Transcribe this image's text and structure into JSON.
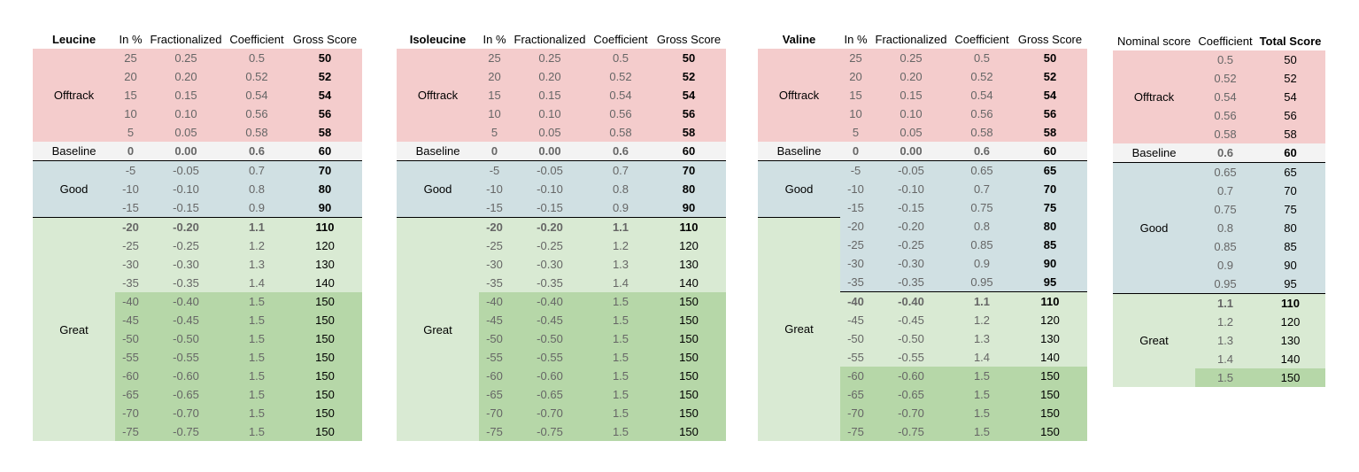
{
  "colors": {
    "offtrack": "#f4cccc",
    "baseline": "#f3f3f3",
    "good": "#d0e0e3",
    "great": "#d9ead3",
    "great_dark": "#b6d7a8",
    "value_text": "#666666"
  },
  "tables": [
    {
      "headers": [
        "Leucine",
        "In %",
        "Fractionalized",
        "Coefficient",
        "Gross Score"
      ],
      "bold_headers": [
        0
      ],
      "groups": [
        {
          "label": "Offtrack",
          "fill": "offtrack",
          "rows": [
            {
              "c": [
                "25",
                "0.25",
                "0.5",
                "50"
              ],
              "fill": "offtrack"
            },
            {
              "c": [
                "20",
                "0.20",
                "0.52",
                "52"
              ],
              "fill": "offtrack"
            },
            {
              "c": [
                "15",
                "0.15",
                "0.54",
                "54"
              ],
              "fill": "offtrack"
            },
            {
              "c": [
                "10",
                "0.10",
                "0.56",
                "56"
              ],
              "fill": "offtrack"
            },
            {
              "c": [
                "5",
                "0.05",
                "0.58",
                "58"
              ],
              "fill": "offtrack"
            }
          ]
        },
        {
          "label": "Baseline",
          "fill": "baseline",
          "rows": [
            {
              "c": [
                "0",
                "0.00",
                "0.6",
                "60"
              ],
              "fill": "baseline",
              "bold": true
            }
          ]
        },
        {
          "label": "Good",
          "fill": "good",
          "line": true,
          "rows": [
            {
              "c": [
                "-5",
                "-0.05",
                "0.7",
                "70"
              ],
              "fill": "good",
              "line": true
            },
            {
              "c": [
                "-10",
                "-0.10",
                "0.8",
                "80"
              ],
              "fill": "good"
            },
            {
              "c": [
                "-15",
                "-0.15",
                "0.9",
                "90"
              ],
              "fill": "good"
            }
          ]
        },
        {
          "label": "Great",
          "fill": "great",
          "line": true,
          "rows": [
            {
              "c": [
                "-20",
                "-0.20",
                "1.1",
                "110"
              ],
              "fill": "great",
              "bold": true,
              "line": true
            },
            {
              "c": [
                "-25",
                "-0.25",
                "1.2",
                "120"
              ],
              "fill": "great"
            },
            {
              "c": [
                "-30",
                "-0.30",
                "1.3",
                "130"
              ],
              "fill": "great"
            },
            {
              "c": [
                "-35",
                "-0.35",
                "1.4",
                "140"
              ],
              "fill": "great"
            },
            {
              "c": [
                "-40",
                "-0.40",
                "1.5",
                "150"
              ],
              "fill": "great_dark"
            },
            {
              "c": [
                "-45",
                "-0.45",
                "1.5",
                "150"
              ],
              "fill": "great_dark"
            },
            {
              "c": [
                "-50",
                "-0.50",
                "1.5",
                "150"
              ],
              "fill": "great_dark"
            },
            {
              "c": [
                "-55",
                "-0.55",
                "1.5",
                "150"
              ],
              "fill": "great_dark"
            },
            {
              "c": [
                "-60",
                "-0.60",
                "1.5",
                "150"
              ],
              "fill": "great_dark"
            },
            {
              "c": [
                "-65",
                "-0.65",
                "1.5",
                "150"
              ],
              "fill": "great_dark"
            },
            {
              "c": [
                "-70",
                "-0.70",
                "1.5",
                "150"
              ],
              "fill": "great_dark"
            },
            {
              "c": [
                "-75",
                "-0.75",
                "1.5",
                "150"
              ],
              "fill": "great_dark"
            }
          ]
        }
      ]
    },
    {
      "headers": [
        "Isoleucine",
        "In %",
        "Fractionalized",
        "Coefficient",
        "Gross Score"
      ],
      "bold_headers": [
        0
      ],
      "groups": [
        {
          "label": "Offtrack",
          "fill": "offtrack",
          "rows": [
            {
              "c": [
                "25",
                "0.25",
                "0.5",
                "50"
              ],
              "fill": "offtrack"
            },
            {
              "c": [
                "20",
                "0.20",
                "0.52",
                "52"
              ],
              "fill": "offtrack"
            },
            {
              "c": [
                "15",
                "0.15",
                "0.54",
                "54"
              ],
              "fill": "offtrack"
            },
            {
              "c": [
                "10",
                "0.10",
                "0.56",
                "56"
              ],
              "fill": "offtrack"
            },
            {
              "c": [
                "5",
                "0.05",
                "0.58",
                "58"
              ],
              "fill": "offtrack"
            }
          ]
        },
        {
          "label": "Baseline",
          "fill": "baseline",
          "rows": [
            {
              "c": [
                "0",
                "0.00",
                "0.6",
                "60"
              ],
              "fill": "baseline",
              "bold": true
            }
          ]
        },
        {
          "label": "Good",
          "fill": "good",
          "line": true,
          "rows": [
            {
              "c": [
                "-5",
                "-0.05",
                "0.7",
                "70"
              ],
              "fill": "good",
              "line": true
            },
            {
              "c": [
                "-10",
                "-0.10",
                "0.8",
                "80"
              ],
              "fill": "good"
            },
            {
              "c": [
                "-15",
                "-0.15",
                "0.9",
                "90"
              ],
              "fill": "good"
            }
          ]
        },
        {
          "label": "Great",
          "fill": "great",
          "line": true,
          "rows": [
            {
              "c": [
                "-20",
                "-0.20",
                "1.1",
                "110"
              ],
              "fill": "great",
              "bold": true,
              "line": true
            },
            {
              "c": [
                "-25",
                "-0.25",
                "1.2",
                "120"
              ],
              "fill": "great"
            },
            {
              "c": [
                "-30",
                "-0.30",
                "1.3",
                "130"
              ],
              "fill": "great"
            },
            {
              "c": [
                "-35",
                "-0.35",
                "1.4",
                "140"
              ],
              "fill": "great"
            },
            {
              "c": [
                "-40",
                "-0.40",
                "1.5",
                "150"
              ],
              "fill": "great_dark"
            },
            {
              "c": [
                "-45",
                "-0.45",
                "1.5",
                "150"
              ],
              "fill": "great_dark"
            },
            {
              "c": [
                "-50",
                "-0.50",
                "1.5",
                "150"
              ],
              "fill": "great_dark"
            },
            {
              "c": [
                "-55",
                "-0.55",
                "1.5",
                "150"
              ],
              "fill": "great_dark"
            },
            {
              "c": [
                "-60",
                "-0.60",
                "1.5",
                "150"
              ],
              "fill": "great_dark"
            },
            {
              "c": [
                "-65",
                "-0.65",
                "1.5",
                "150"
              ],
              "fill": "great_dark"
            },
            {
              "c": [
                "-70",
                "-0.70",
                "1.5",
                "150"
              ],
              "fill": "great_dark"
            },
            {
              "c": [
                "-75",
                "-0.75",
                "1.5",
                "150"
              ],
              "fill": "great_dark"
            }
          ]
        }
      ]
    },
    {
      "headers": [
        "Valine",
        "In %",
        "Fractionalized",
        "Coefficient",
        "Gross Score"
      ],
      "bold_headers": [
        0
      ],
      "groups": [
        {
          "label": "Offtrack",
          "fill": "offtrack",
          "rows": [
            {
              "c": [
                "25",
                "0.25",
                "0.5",
                "50"
              ],
              "fill": "offtrack"
            },
            {
              "c": [
                "20",
                "0.20",
                "0.52",
                "52"
              ],
              "fill": "offtrack"
            },
            {
              "c": [
                "15",
                "0.15",
                "0.54",
                "54"
              ],
              "fill": "offtrack"
            },
            {
              "c": [
                "10",
                "0.10",
                "0.56",
                "56"
              ],
              "fill": "offtrack"
            },
            {
              "c": [
                "5",
                "0.05",
                "0.58",
                "58"
              ],
              "fill": "offtrack"
            }
          ]
        },
        {
          "label": "Baseline",
          "fill": "baseline",
          "rows": [
            {
              "c": [
                "0",
                "0.00",
                "0.6",
                "60"
              ],
              "fill": "baseline",
              "bold": true
            }
          ]
        },
        {
          "label": "Good",
          "fill": "good",
          "line": true,
          "rows": [
            {
              "c": [
                "-5",
                "-0.05",
                "0.65",
                "65"
              ],
              "fill": "good",
              "line": true
            },
            {
              "c": [
                "-10",
                "-0.10",
                "0.7",
                "70"
              ],
              "fill": "good"
            },
            {
              "c": [
                "-15",
                "-0.15",
                "0.75",
                "75"
              ],
              "fill": "good"
            }
          ]
        },
        {
          "label": "Great",
          "fill": "great",
          "line": true,
          "rows": [
            {
              "c": [
                "-20",
                "-0.20",
                "0.8",
                "80"
              ],
              "fill": "good"
            },
            {
              "c": [
                "-25",
                "-0.25",
                "0.85",
                "85"
              ],
              "fill": "good"
            },
            {
              "c": [
                "-30",
                "-0.30",
                "0.9",
                "90"
              ],
              "fill": "good"
            },
            {
              "c": [
                "-35",
                "-0.35",
                "0.95",
                "95"
              ],
              "fill": "good"
            },
            {
              "c": [
                "-40",
                "-0.40",
                "1.1",
                "110"
              ],
              "fill": "great",
              "bold": true,
              "line": true
            },
            {
              "c": [
                "-45",
                "-0.45",
                "1.2",
                "120"
              ],
              "fill": "great"
            },
            {
              "c": [
                "-50",
                "-0.50",
                "1.3",
                "130"
              ],
              "fill": "great"
            },
            {
              "c": [
                "-55",
                "-0.55",
                "1.4",
                "140"
              ],
              "fill": "great"
            },
            {
              "c": [
                "-60",
                "-0.60",
                "1.5",
                "150"
              ],
              "fill": "great_dark"
            },
            {
              "c": [
                "-65",
                "-0.65",
                "1.5",
                "150"
              ],
              "fill": "great_dark"
            },
            {
              "c": [
                "-70",
                "-0.70",
                "1.5",
                "150"
              ],
              "fill": "great_dark"
            },
            {
              "c": [
                "-75",
                "-0.75",
                "1.5",
                "150"
              ],
              "fill": "great_dark"
            }
          ]
        }
      ]
    },
    {
      "headers": [
        "Nominal score",
        "Coefficient",
        "Total Score"
      ],
      "bold_headers": [
        2
      ],
      "groups": [
        {
          "label": "Offtrack",
          "fill": "offtrack",
          "rows": [
            {
              "c": [
                "0.5",
                "50"
              ],
              "fill": "offtrack"
            },
            {
              "c": [
                "0.52",
                "52"
              ],
              "fill": "offtrack"
            },
            {
              "c": [
                "0.54",
                "54"
              ],
              "fill": "offtrack"
            },
            {
              "c": [
                "0.56",
                "56"
              ],
              "fill": "offtrack"
            },
            {
              "c": [
                "0.58",
                "58"
              ],
              "fill": "offtrack"
            }
          ]
        },
        {
          "label": "Baseline",
          "fill": "baseline",
          "rows": [
            {
              "c": [
                "0.6",
                "60"
              ],
              "fill": "baseline",
              "bold": true
            }
          ]
        },
        {
          "label": "Good",
          "fill": "good",
          "line": true,
          "rows": [
            {
              "c": [
                "0.65",
                "65"
              ],
              "fill": "good",
              "line": true
            },
            {
              "c": [
                "0.7",
                "70"
              ],
              "fill": "good"
            },
            {
              "c": [
                "0.75",
                "75"
              ],
              "fill": "good"
            },
            {
              "c": [
                "0.8",
                "80"
              ],
              "fill": "good"
            },
            {
              "c": [
                "0.85",
                "85"
              ],
              "fill": "good"
            },
            {
              "c": [
                "0.9",
                "90"
              ],
              "fill": "good"
            },
            {
              "c": [
                "0.95",
                "95"
              ],
              "fill": "good"
            }
          ]
        },
        {
          "label": "Great",
          "fill": "great",
          "line": true,
          "rows": [
            {
              "c": [
                "1.1",
                "110"
              ],
              "fill": "great",
              "bold": true,
              "line": true
            },
            {
              "c": [
                "1.2",
                "120"
              ],
              "fill": "great"
            },
            {
              "c": [
                "1.3",
                "130"
              ],
              "fill": "great"
            },
            {
              "c": [
                "1.4",
                "140"
              ],
              "fill": "great"
            },
            {
              "c": [
                "1.5",
                "150"
              ],
              "fill": "great_dark"
            }
          ]
        }
      ]
    }
  ]
}
